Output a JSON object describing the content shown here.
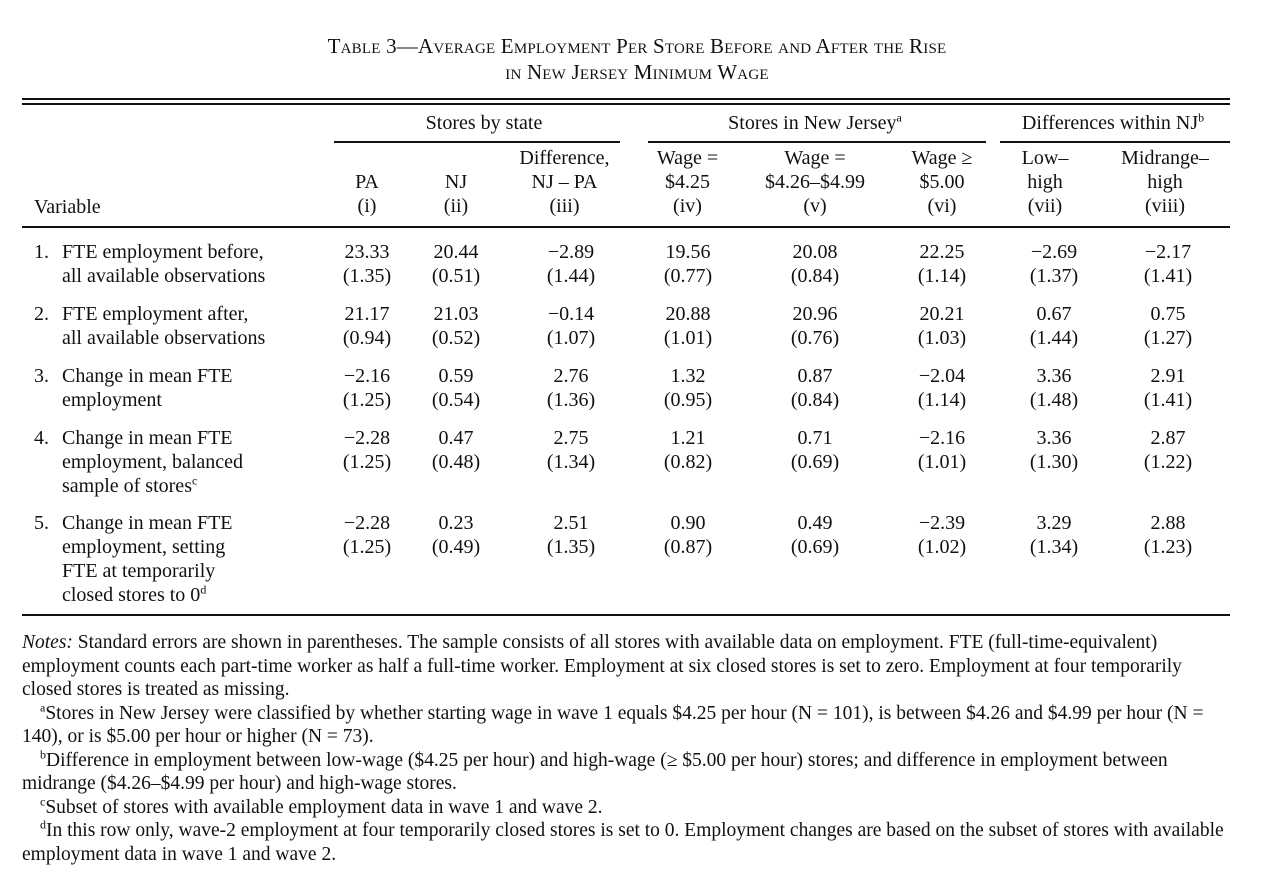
{
  "title_line1": "Table 3—Average Employment Per Store Before and After the Rise",
  "title_line2": "in New Jersey Minimum Wage",
  "groups": {
    "by_state": "Stores by state",
    "in_nj": "Stores in New Jersey",
    "in_nj_sup": "a",
    "within_nj": "Differences within NJ",
    "within_nj_sup": "b"
  },
  "variable_header": "Variable",
  "columns": [
    {
      "l1": "",
      "l2": "PA",
      "l3": "(i)"
    },
    {
      "l1": "",
      "l2": "NJ",
      "l3": "(ii)"
    },
    {
      "l1": "Difference,",
      "l2": "NJ – PA",
      "l3": "(iii)"
    },
    {
      "l1": "Wage =",
      "l2": "$4.25",
      "l3": "(iv)"
    },
    {
      "l1": "Wage =",
      "l2": "$4.26–$4.99",
      "l3": "(v)"
    },
    {
      "l1": "Wage ≥",
      "l2": "$5.00",
      "l3": "(vi)"
    },
    {
      "l1": "Low–",
      "l2": "high",
      "l3": "(vii)"
    },
    {
      "l1": "Midrange–",
      "l2": "high",
      "l3": "(viii)"
    }
  ],
  "rows": [
    {
      "num": "1.",
      "label": [
        "FTE employment before,",
        "all available observations"
      ],
      "values": [
        "23.33",
        "20.44",
        "−2.89",
        "19.56",
        "20.08",
        "22.25",
        "−2.69",
        "−2.17"
      ],
      "se": [
        "(1.35)",
        "(0.51)",
        "(1.44)",
        "(0.77)",
        "(0.84)",
        "(1.14)",
        "(1.37)",
        "(1.41)"
      ]
    },
    {
      "num": "2.",
      "label": [
        "FTE employment after,",
        "all available observations"
      ],
      "values": [
        "21.17",
        "21.03",
        "−0.14",
        "20.88",
        "20.96",
        "20.21",
        "0.67",
        "0.75"
      ],
      "se": [
        "(0.94)",
        "(0.52)",
        "(1.07)",
        "(1.01)",
        "(0.76)",
        "(1.03)",
        "(1.44)",
        "(1.27)"
      ]
    },
    {
      "num": "3.",
      "label": [
        "Change in mean FTE",
        "employment"
      ],
      "values": [
        "−2.16",
        "0.59",
        "2.76",
        "1.32",
        "0.87",
        "−2.04",
        "3.36",
        "2.91"
      ],
      "se": [
        "(1.25)",
        "(0.54)",
        "(1.36)",
        "(0.95)",
        "(0.84)",
        "(1.14)",
        "(1.48)",
        "(1.41)"
      ]
    },
    {
      "num": "4.",
      "label": [
        "Change in mean FTE",
        "employment, balanced",
        "sample of stores"
      ],
      "label_sup": "c",
      "values": [
        "−2.28",
        "0.47",
        "2.75",
        "1.21",
        "0.71",
        "−2.16",
        "3.36",
        "2.87"
      ],
      "se": [
        "(1.25)",
        "(0.48)",
        "(1.34)",
        "(0.82)",
        "(0.69)",
        "(1.01)",
        "(1.30)",
        "(1.22)"
      ]
    },
    {
      "num": "5.",
      "label": [
        "Change in mean FTE",
        "employment, setting",
        "FTE at temporarily",
        "closed stores to 0"
      ],
      "label_sup": "d",
      "values": [
        "−2.28",
        "0.23",
        "2.51",
        "0.90",
        "0.49",
        "−2.39",
        "3.29",
        "2.88"
      ],
      "se": [
        "(1.25)",
        "(0.49)",
        "(1.35)",
        "(0.87)",
        "(0.69)",
        "(1.02)",
        "(1.34)",
        "(1.23)"
      ]
    }
  ],
  "notes": {
    "main_lead": "Notes:",
    "main": "Standard errors are shown in parentheses. The sample consists of all stores with available data on employment. FTE (full-time-equivalent) employment counts each part-time worker as half a full-time worker. Employment at six closed stores is set to zero. Employment at four temporarily closed stores is treated as missing.",
    "a_mark": "a",
    "a": "Stores in New Jersey were classified by whether starting wage in wave 1 equals $4.25 per hour (N = 101), is between $4.26 and $4.99 per hour (N = 140), or is $5.00 per hour or higher (N = 73).",
    "b_mark": "b",
    "b": "Difference in employment between low-wage ($4.25 per hour) and high-wage (≥ $5.00 per hour) stores; and difference in employment between midrange ($4.26–$4.99 per hour) and high-wage stores.",
    "c_mark": "c",
    "c": "Subset of stores with available employment data in wave 1 and wave 2.",
    "d_mark": "d",
    "d": "In this row only, wave-2 employment at four temporarily closed stores is set to 0. Employment changes are based on the subset of stores with available employment data in wave 1 and wave 2."
  }
}
